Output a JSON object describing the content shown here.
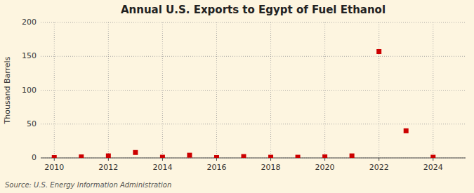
{
  "chart_data": {
    "type": "scatter",
    "title": "Annual U.S. Exports to Egypt of Fuel Ethanol",
    "ylabel": "Thousand Barrels",
    "source": "Source: U.S. Energy Information Administration",
    "x": [
      2010,
      2011,
      2012,
      2013,
      2014,
      2015,
      2016,
      2017,
      2018,
      2019,
      2020,
      2021,
      2022,
      2023,
      2024
    ],
    "values": [
      0.5,
      1.5,
      3,
      8,
      1,
      4,
      0.5,
      2,
      1,
      1,
      1.5,
      3,
      157,
      40,
      1
    ],
    "color": "#cc0000",
    "marker": "square",
    "xlim": [
      2009.5,
      2025.2
    ],
    "ylim": [
      0,
      200
    ],
    "xticks": [
      2010,
      2012,
      2014,
      2016,
      2018,
      2020,
      2022,
      2024
    ],
    "yticks": [
      0,
      50,
      100,
      150,
      200
    ],
    "grid": true
  }
}
